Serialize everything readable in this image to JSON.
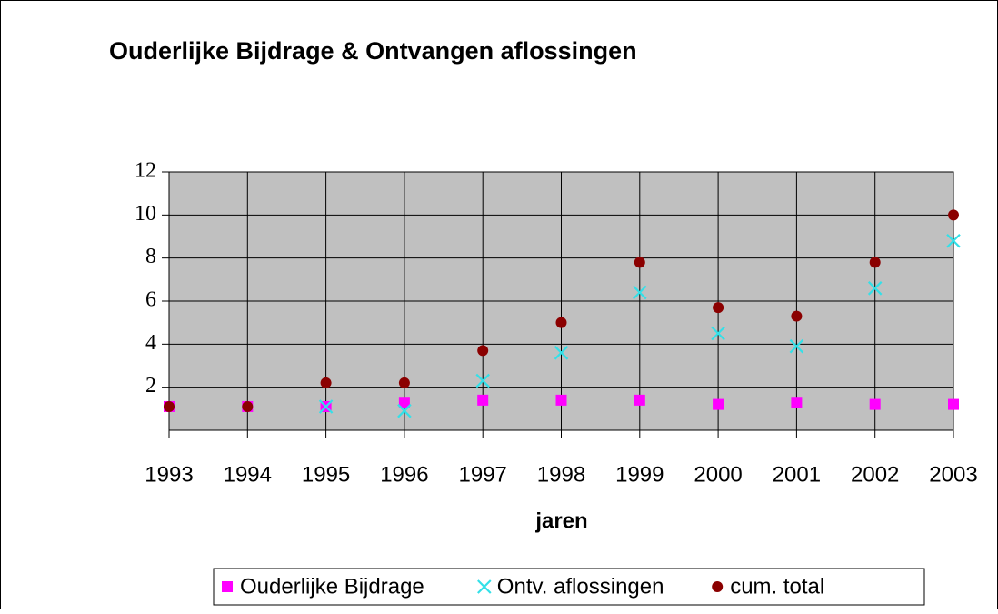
{
  "chart_data": {
    "type": "scatter",
    "title": "Ouderlijke Bijdrage & Ontvangen  aflossingen",
    "x_label": "jaren",
    "categories": [
      "1993",
      "1994",
      "1995",
      "1996",
      "1997",
      "1998",
      "1999",
      "2000",
      "2001",
      "2002",
      "2003"
    ],
    "series": [
      {
        "name": "Ouderlijke Bijdrage",
        "color": "#ff00ff",
        "marker": "square",
        "values": [
          1.1,
          1.1,
          1.1,
          1.3,
          1.4,
          1.4,
          1.4,
          1.2,
          1.3,
          1.2,
          1.2
        ]
      },
      {
        "name": "Ontv. aflossingen",
        "color": "#33e0e8",
        "marker": "x",
        "values": [
          null,
          null,
          1.1,
          0.9,
          2.3,
          3.6,
          6.4,
          4.5,
          3.9,
          6.6,
          8.8
        ]
      },
      {
        "name": "cum. total",
        "color": "#8b0000",
        "marker": "circle",
        "values": [
          1.1,
          1.1,
          2.2,
          2.2,
          3.7,
          5.0,
          7.8,
          5.7,
          5.3,
          7.8,
          10.0
        ]
      }
    ],
    "ylim": [
      0,
      12
    ],
    "yticks": [
      2,
      4,
      6,
      8,
      10,
      12
    ],
    "grid": true,
    "plot_background": "#c0c0c0",
    "legend": "bottom"
  }
}
